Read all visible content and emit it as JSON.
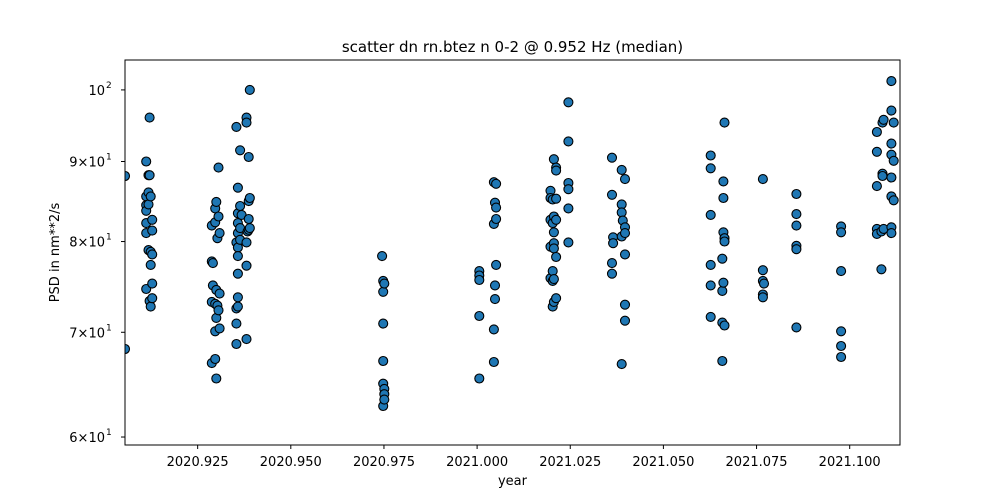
{
  "chart_data": {
    "type": "scatter",
    "title": "scatter dn rn.btez n 0-2 @ 0.952 Hz (median)",
    "xlabel": "year",
    "ylabel": "PSD in nm**2/s",
    "xlim": [
      2020.9055,
      2021.1135
    ],
    "ylim": [
      59.3,
      104.5
    ],
    "yscale": "log",
    "xticks": [
      {
        "value": 2020.925,
        "label": "2020.925"
      },
      {
        "value": 2020.95,
        "label": "2020.950"
      },
      {
        "value": 2020.975,
        "label": "2020.975"
      },
      {
        "value": 2021.0,
        "label": "2021.000"
      },
      {
        "value": 2021.025,
        "label": "2021.025"
      },
      {
        "value": 2021.05,
        "label": "2021.050"
      },
      {
        "value": 2021.075,
        "label": "2021.075"
      },
      {
        "value": 2021.1,
        "label": "2021.100"
      }
    ],
    "yticks": [
      {
        "value": 60,
        "base": "6×10",
        "exp": "1"
      },
      {
        "value": 70,
        "base": "7×10",
        "exp": "1"
      },
      {
        "value": 80,
        "base": "8×10",
        "exp": "1"
      },
      {
        "value": 90,
        "base": "9×10",
        "exp": "1"
      },
      {
        "value": 100,
        "base": "10",
        "exp": "2"
      }
    ],
    "grid": false,
    "marker_color": "#1f77b4",
    "marker_edge": "#000000",
    "points": [
      [
        2020.9055,
        88.1
      ],
      [
        2020.9055,
        68.3
      ],
      [
        2020.9112,
        90.0
      ],
      [
        2020.9112,
        85.5
      ],
      [
        2020.9112,
        84.4
      ],
      [
        2020.9112,
        83.7
      ],
      [
        2020.9112,
        82.2
      ],
      [
        2020.9112,
        81.0
      ],
      [
        2020.9112,
        74.6
      ],
      [
        2020.9118,
        88.2
      ],
      [
        2020.9118,
        86.0
      ],
      [
        2020.9118,
        84.5
      ],
      [
        2020.9118,
        79.0
      ],
      [
        2020.9121,
        96.0
      ],
      [
        2020.9121,
        88.2
      ],
      [
        2020.9121,
        73.3
      ],
      [
        2020.9124,
        85.5
      ],
      [
        2020.9124,
        78.8
      ],
      [
        2020.9124,
        77.3
      ],
      [
        2020.9124,
        72.7
      ],
      [
        2020.9128,
        82.6
      ],
      [
        2020.9128,
        81.3
      ],
      [
        2020.9128,
        78.5
      ],
      [
        2020.9128,
        75.2
      ],
      [
        2020.9128,
        73.6
      ],
      [
        2020.9288,
        81.9
      ],
      [
        2020.9288,
        77.7
      ],
      [
        2020.9288,
        73.2
      ],
      [
        2020.9288,
        66.9
      ],
      [
        2020.9291,
        77.5
      ],
      [
        2020.9291,
        75.0
      ],
      [
        2020.9297,
        84.0
      ],
      [
        2020.9297,
        82.3
      ],
      [
        2020.9297,
        73.0
      ],
      [
        2020.9297,
        70.1
      ],
      [
        2020.9297,
        67.3
      ],
      [
        2020.93,
        84.8
      ],
      [
        2020.93,
        74.5
      ],
      [
        2020.93,
        71.5
      ],
      [
        2020.93,
        65.4
      ],
      [
        2020.9303,
        80.4
      ],
      [
        2020.9303,
        72.8
      ],
      [
        2020.9306,
        89.2
      ],
      [
        2020.9306,
        83.0
      ],
      [
        2020.9306,
        72.3
      ],
      [
        2020.9309,
        81.0
      ],
      [
        2020.9309,
        74.1
      ],
      [
        2020.9309,
        70.4
      ],
      [
        2020.9354,
        94.7
      ],
      [
        2020.9354,
        79.9
      ],
      [
        2020.9354,
        72.5
      ],
      [
        2020.9354,
        70.9
      ],
      [
        2020.9354,
        68.8
      ],
      [
        2020.9358,
        86.6
      ],
      [
        2020.9358,
        83.4
      ],
      [
        2020.9358,
        82.2
      ],
      [
        2020.9358,
        81.0
      ],
      [
        2020.9358,
        79.3
      ],
      [
        2020.9358,
        78.3
      ],
      [
        2020.9358,
        76.3
      ],
      [
        2020.9358,
        73.7
      ],
      [
        2020.9358,
        72.7
      ],
      [
        2020.9364,
        91.5
      ],
      [
        2020.9364,
        84.3
      ],
      [
        2020.9364,
        81.6
      ],
      [
        2020.9364,
        80.2
      ],
      [
        2020.9368,
        83.2
      ],
      [
        2020.9381,
        96.0
      ],
      [
        2020.9381,
        95.3
      ],
      [
        2020.9381,
        79.9
      ],
      [
        2020.9381,
        77.2
      ],
      [
        2020.9381,
        69.3
      ],
      [
        2020.9384,
        81.2
      ],
      [
        2020.9387,
        90.6
      ],
      [
        2020.9387,
        84.9
      ],
      [
        2020.9387,
        82.7
      ],
      [
        2020.9387,
        81.4
      ],
      [
        2020.939,
        100.0
      ],
      [
        2020.939,
        85.3
      ],
      [
        2020.939,
        81.6
      ],
      [
        2020.9745,
        78.3
      ],
      [
        2020.9748,
        75.5
      ],
      [
        2020.9748,
        74.3
      ],
      [
        2020.9748,
        70.9
      ],
      [
        2020.9748,
        67.1
      ],
      [
        2020.9748,
        64.9
      ],
      [
        2020.9748,
        62.8
      ],
      [
        2020.9751,
        75.2
      ],
      [
        2020.9751,
        64.4
      ],
      [
        2020.9751,
        63.9
      ],
      [
        2020.9751,
        63.4
      ],
      [
        2021.0006,
        76.6
      ],
      [
        2021.0006,
        76.1
      ],
      [
        2021.0006,
        75.6
      ],
      [
        2021.0006,
        71.7
      ],
      [
        2021.0006,
        65.4
      ],
      [
        2021.0045,
        87.3
      ],
      [
        2021.0045,
        82.1
      ],
      [
        2021.0045,
        70.3
      ],
      [
        2021.0045,
        67.0
      ],
      [
        2021.0048,
        84.7
      ],
      [
        2021.0048,
        75.0
      ],
      [
        2021.0048,
        73.5
      ],
      [
        2021.0051,
        87.1
      ],
      [
        2021.0051,
        84.1
      ],
      [
        2021.0051,
        82.7
      ],
      [
        2021.0051,
        77.3
      ],
      [
        2021.0197,
        86.2
      ],
      [
        2021.0197,
        85.3
      ],
      [
        2021.0197,
        82.6
      ],
      [
        2021.0197,
        79.4
      ],
      [
        2021.0197,
        75.8
      ],
      [
        2021.0203,
        85.1
      ],
      [
        2021.0203,
        82.2
      ],
      [
        2021.0203,
        76.6
      ],
      [
        2021.0203,
        75.5
      ],
      [
        2021.0203,
        72.7
      ],
      [
        2021.0206,
        90.3
      ],
      [
        2021.0206,
        83.0
      ],
      [
        2021.0206,
        81.1
      ],
      [
        2021.0206,
        79.8
      ],
      [
        2021.0206,
        79.2
      ],
      [
        2021.0206,
        75.7
      ],
      [
        2021.0206,
        73.2
      ],
      [
        2021.0212,
        89.2
      ],
      [
        2021.0212,
        88.8
      ],
      [
        2021.0212,
        85.2
      ],
      [
        2021.0212,
        82.6
      ],
      [
        2021.0212,
        78.2
      ],
      [
        2021.0212,
        73.6
      ],
      [
        2021.0245,
        98.2
      ],
      [
        2021.0245,
        92.7
      ],
      [
        2021.0245,
        87.2
      ],
      [
        2021.0245,
        86.4
      ],
      [
        2021.0245,
        84.0
      ],
      [
        2021.0245,
        79.9
      ],
      [
        2021.0362,
        90.5
      ],
      [
        2021.0362,
        85.7
      ],
      [
        2021.0362,
        77.5
      ],
      [
        2021.0362,
        76.3
      ],
      [
        2021.0365,
        80.5
      ],
      [
        2021.0365,
        79.8
      ],
      [
        2021.0388,
        88.9
      ],
      [
        2021.0388,
        84.5
      ],
      [
        2021.0388,
        83.5
      ],
      [
        2021.0388,
        80.6
      ],
      [
        2021.0388,
        66.8
      ],
      [
        2021.0391,
        82.5
      ],
      [
        2021.0397,
        87.7
      ],
      [
        2021.0397,
        81.7
      ],
      [
        2021.0397,
        81.0
      ],
      [
        2021.0397,
        78.5
      ],
      [
        2021.0397,
        72.9
      ],
      [
        2021.0397,
        71.2
      ],
      [
        2021.0627,
        90.8
      ],
      [
        2021.0627,
        89.1
      ],
      [
        2021.0627,
        83.2
      ],
      [
        2021.0627,
        77.3
      ],
      [
        2021.0627,
        75.0
      ],
      [
        2021.0627,
        71.6
      ],
      [
        2021.0658,
        78.0
      ],
      [
        2021.0658,
        74.4
      ],
      [
        2021.0658,
        71.0
      ],
      [
        2021.0658,
        67.1
      ],
      [
        2021.0661,
        87.4
      ],
      [
        2021.0661,
        85.3
      ],
      [
        2021.0661,
        81.1
      ],
      [
        2021.0661,
        75.3
      ],
      [
        2021.0664,
        95.3
      ],
      [
        2021.0664,
        80.4
      ],
      [
        2021.0664,
        80.0
      ],
      [
        2021.0664,
        70.7
      ],
      [
        2021.0767,
        87.7
      ],
      [
        2021.0767,
        76.7
      ],
      [
        2021.0767,
        75.5
      ],
      [
        2021.0767,
        74.0
      ],
      [
        2021.0767,
        73.7
      ],
      [
        2021.077,
        75.2
      ],
      [
        2021.0857,
        85.8
      ],
      [
        2021.0857,
        83.3
      ],
      [
        2021.0857,
        81.9
      ],
      [
        2021.0857,
        79.5
      ],
      [
        2021.0857,
        79.1
      ],
      [
        2021.0857,
        70.5
      ],
      [
        2021.0977,
        81.8
      ],
      [
        2021.0977,
        81.1
      ],
      [
        2021.0977,
        76.6
      ],
      [
        2021.0977,
        70.1
      ],
      [
        2021.0977,
        68.6
      ],
      [
        2021.0977,
        67.5
      ],
      [
        2021.1073,
        94.0
      ],
      [
        2021.1073,
        91.3
      ],
      [
        2021.1073,
        86.8
      ],
      [
        2021.1073,
        81.5
      ],
      [
        2021.1073,
        80.9
      ],
      [
        2021.1085,
        81.2
      ],
      [
        2021.1085,
        76.8
      ],
      [
        2021.1088,
        95.3
      ],
      [
        2021.1088,
        88.4
      ],
      [
        2021.1088,
        88.1
      ],
      [
        2021.1091,
        95.7
      ],
      [
        2021.1091,
        81.5
      ],
      [
        2021.1112,
        101.3
      ],
      [
        2021.1112,
        97.0
      ],
      [
        2021.1112,
        92.4
      ],
      [
        2021.1112,
        90.9
      ],
      [
        2021.1112,
        87.9
      ],
      [
        2021.1112,
        85.5
      ],
      [
        2021.1112,
        81.7
      ],
      [
        2021.1112,
        81.0
      ],
      [
        2021.1118,
        95.3
      ],
      [
        2021.1118,
        90.1
      ],
      [
        2021.1118,
        85.0
      ]
    ]
  }
}
